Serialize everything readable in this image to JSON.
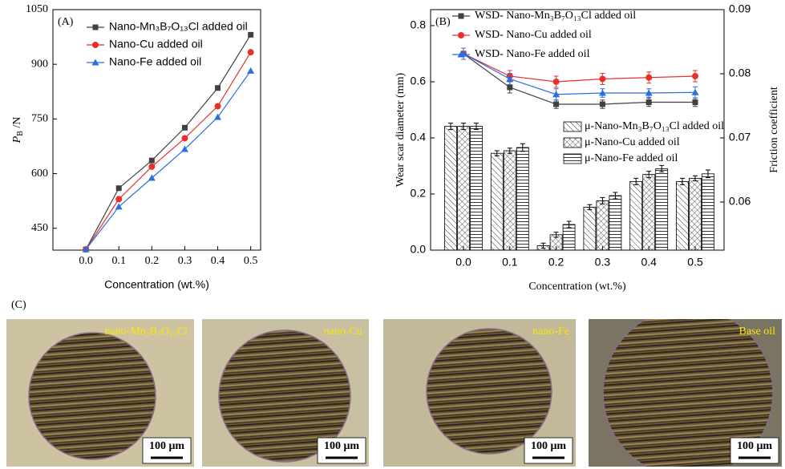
{
  "chart_data": [
    {
      "type": "line",
      "title": "(A)",
      "y_label": {
        "text": "P",
        "sub": "B",
        "suffix": " /N"
      },
      "x_label": "Concentration (wt.%)",
      "x": [
        0,
        0.1,
        0.2,
        0.3,
        0.4,
        0.5
      ],
      "xlim": [
        -0.1,
        0.53
      ],
      "xticks": [
        {
          "value": 0,
          "label": "0.0"
        },
        0.1,
        0.2,
        0.3,
        0.4,
        0.5
      ],
      "ylim": [
        390,
        1050
      ],
      "yticks": [
        450,
        600,
        750,
        900,
        1050
      ],
      "series": [
        {
          "name": "Nano-Mn₃B₇O₁₃Cl added oil",
          "color": "#404040",
          "marker": "square",
          "values": [
            392,
            560,
            636,
            726,
            835,
            981
          ]
        },
        {
          "name": "Nano-Cu added oil",
          "color": "#e8302a",
          "marker": "circle",
          "values": [
            392,
            530,
            619,
            697,
            785,
            933
          ]
        },
        {
          "name": "Nano-Fe added oil",
          "color": "#2a6fe0",
          "marker": "triangle",
          "values": [
            392,
            509,
            588,
            667,
            755,
            882
          ]
        }
      ]
    },
    {
      "type": "combo",
      "title": "(B)",
      "y_label": "Wear scar diameter (mm)",
      "y2_label": "Friction coefficient",
      "x_label": "Concentration (wt.%)",
      "categories": [
        "0.0",
        "0.1",
        "0.2",
        "0.3",
        "0.4",
        "0.5"
      ],
      "ylim": [
        0,
        0.857
      ],
      "yticks": [
        {
          "value": 0,
          "label": "0.0"
        },
        0.2,
        0.4,
        0.6,
        0.8
      ],
      "y2lim": [
        0.0525,
        0.09
      ],
      "y2ticks": [
        0.06,
        0.07,
        0.08,
        0.09
      ],
      "series": [
        {
          "name": "WSD- Nano-Mn₃B₇O₁₃Cl added oil",
          "kind": "line",
          "color": "#404040",
          "marker": "square",
          "values": [
            0.7,
            0.58,
            0.52,
            0.52,
            0.527,
            0.527
          ],
          "errors": [
            0.02,
            0.02,
            0.015,
            0.015,
            0.015,
            0.015
          ]
        },
        {
          "name": "WSD- Nano-Cu added oil",
          "kind": "line",
          "color": "#e8302a",
          "marker": "circle",
          "values": [
            0.7,
            0.62,
            0.6,
            0.61,
            0.615,
            0.62
          ],
          "errors": [
            0.02,
            0.02,
            0.02,
            0.02,
            0.02,
            0.02
          ]
        },
        {
          "name": "WSD- Nano-Fe added oil",
          "kind": "line",
          "color": "#2a6fe0",
          "marker": "triangle",
          "values": [
            0.7,
            0.61,
            0.555,
            0.56,
            0.56,
            0.562
          ],
          "errors": [
            0.02,
            0.02,
            0.02,
            0.015,
            0.015,
            0.02
          ]
        },
        {
          "name": "μ-Nano-Mn₃B₇O₁₃Cl added oil",
          "kind": "bar",
          "axis": "y2",
          "hatch": "diagonal",
          "values": [
            0.0718,
            0.0676,
            0.0532,
            0.0592,
            0.0632,
            0.0632
          ],
          "errors": [
            0.0005,
            0.0004,
            0.0004,
            0.0004,
            0.0005,
            0.0005
          ]
        },
        {
          "name": "μ-Nano-Cu added oil",
          "kind": "bar",
          "axis": "y2",
          "hatch": "cross",
          "values": [
            0.0718,
            0.068,
            0.0549,
            0.0602,
            0.0643,
            0.0637
          ],
          "errors": [
            0.0005,
            0.0004,
            0.0004,
            0.0005,
            0.0005,
            0.0004
          ]
        },
        {
          "name": "μ-Nano-Fe added oil",
          "kind": "bar",
          "axis": "y2",
          "hatch": "horizontal",
          "values": [
            0.0718,
            0.0685,
            0.0565,
            0.061,
            0.0652,
            0.0644
          ],
          "errors": [
            0.0005,
            0.0006,
            0.0005,
            0.0005,
            0.0005,
            0.0006
          ]
        }
      ]
    }
  ],
  "panel_c": {
    "label": "(C)",
    "images": [
      {
        "label": "nano-Mn₃B₇O₁₃Cl",
        "scale": "100 μm"
      },
      {
        "label": "nano-Cu",
        "scale": "100 μm"
      },
      {
        "label": "nano-Fe",
        "scale": "100 μm"
      },
      {
        "label": "Base oil",
        "scale": "100 μm"
      }
    ]
  }
}
